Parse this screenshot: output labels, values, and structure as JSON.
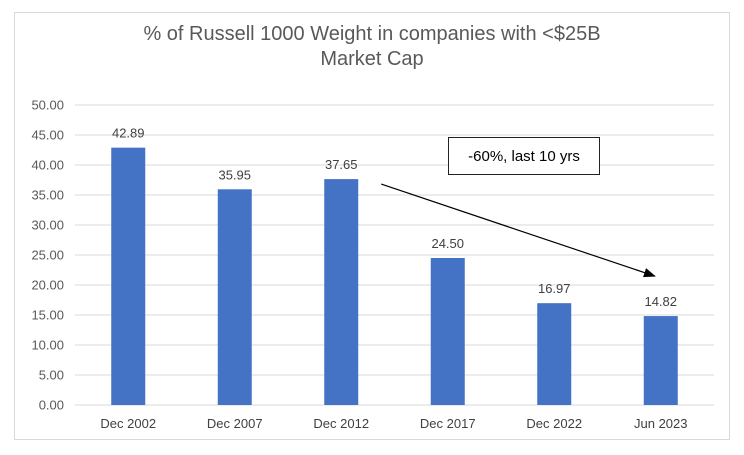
{
  "chart_data": {
    "type": "bar",
    "title": [
      "% of Russell 1000 Weight in companies with  <$25B",
      "Market Cap"
    ],
    "categories": [
      "Dec 2002",
      "Dec 2007",
      "Dec 2012",
      "Dec 2017",
      "Dec 2022",
      "Jun 2023"
    ],
    "values": [
      42.89,
      35.95,
      37.65,
      24.5,
      16.97,
      14.82
    ],
    "data_labels": [
      "42.89",
      "35.95",
      "37.65",
      "24.50",
      "16.97",
      "14.82"
    ],
    "yticks": [
      "0.00",
      "5.00",
      "10.00",
      "15.00",
      "20.00",
      "25.00",
      "30.00",
      "35.00",
      "40.00",
      "45.00",
      "50.00"
    ],
    "ylim": [
      0,
      50
    ],
    "bar_color": "#4472C4",
    "grid": true,
    "legend": "none",
    "annotation": {
      "text": "-60%, last 10 yrs",
      "arrow_from_category": "Dec 2012",
      "arrow_to_category": "Jun 2023"
    }
  }
}
